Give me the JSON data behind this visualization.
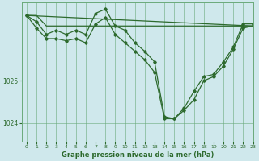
{
  "title": "Graphe pression niveau de la mer (hPa)",
  "bg_color": "#cfe8ec",
  "grid_color": "#6aaa7a",
  "line_color": "#2d6a2d",
  "xlim": [
    -0.5,
    23
  ],
  "ylim": [
    1023.55,
    1026.85
  ],
  "yticks": [
    1024,
    1025
  ],
  "xticks": [
    0,
    1,
    2,
    3,
    4,
    5,
    6,
    7,
    8,
    9,
    10,
    11,
    12,
    13,
    14,
    15,
    16,
    17,
    18,
    19,
    20,
    21,
    22,
    23
  ],
  "series": [
    {
      "x": [
        0,
        1,
        2,
        3,
        4,
        5,
        6,
        7,
        8,
        9,
        10,
        11,
        12,
        13,
        14,
        15,
        16,
        17,
        18,
        19,
        20,
        21,
        22,
        23
      ],
      "y": [
        1026.55,
        1026.55,
        1026.3,
        1026.3,
        1026.3,
        1026.3,
        1026.3,
        1026.3,
        1026.3,
        1026.3,
        1026.3,
        1026.3,
        1026.3,
        1026.3,
        1026.3,
        1026.3,
        1026.3,
        1026.3,
        1026.3,
        1026.3,
        1026.3,
        1026.3,
        1026.3,
        1026.3
      ],
      "markers": false
    },
    {
      "x": [
        0,
        23
      ],
      "y": [
        1026.55,
        1026.3
      ],
      "markers": false
    },
    {
      "x": [
        0,
        1,
        2,
        3,
        4,
        5,
        6,
        7,
        8,
        9,
        10,
        11,
        12,
        13,
        14,
        15,
        16,
        17,
        18,
        19,
        20,
        21,
        22,
        23
      ],
      "y": [
        1026.55,
        1026.4,
        1026.1,
        1026.2,
        1026.1,
        1026.2,
        1026.1,
        1026.6,
        1026.7,
        1026.3,
        1026.2,
        1025.9,
        1025.7,
        1025.45,
        1024.15,
        1024.1,
        1024.35,
        1024.75,
        1025.1,
        1025.15,
        1025.45,
        1025.8,
        1026.35,
        1026.35
      ],
      "markers": true
    },
    {
      "x": [
        0,
        1,
        2,
        3,
        4,
        5,
        6,
        7,
        8,
        9,
        10,
        11,
        12,
        13,
        14,
        15,
        16,
        17,
        18,
        19,
        20,
        21,
        22,
        23
      ],
      "y": [
        1026.55,
        1026.25,
        1026.0,
        1026.0,
        1025.95,
        1026.0,
        1025.9,
        1026.35,
        1026.5,
        1026.1,
        1025.9,
        1025.7,
        1025.5,
        1025.2,
        1024.1,
        1024.1,
        1024.3,
        1024.55,
        1025.0,
        1025.1,
        1025.35,
        1025.75,
        1026.25,
        1026.3
      ],
      "markers": true
    }
  ]
}
